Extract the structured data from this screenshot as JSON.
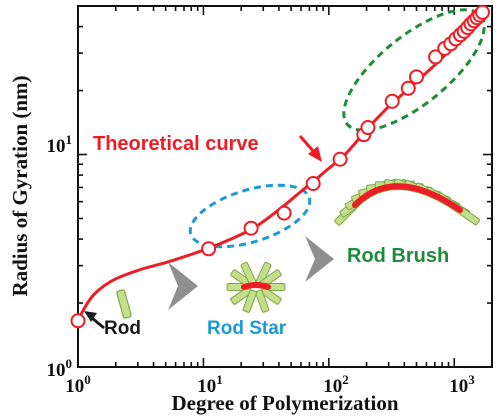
{
  "chart_data": {
    "type": "scatter",
    "xscale": "log",
    "yscale": "log",
    "xlim": [
      1,
      2000
    ],
    "ylim": [
      1,
      50
    ],
    "xlabel": "Degree of Polymerization",
    "ylabel": "Radius of Gyration (nm)",
    "x_ticks": [
      {
        "base": "10",
        "exp": "0",
        "value": 1
      },
      {
        "base": "10",
        "exp": "1",
        "value": 10
      },
      {
        "base": "10",
        "exp": "2",
        "value": 100
      },
      {
        "base": "10",
        "exp": "3",
        "value": 1000
      }
    ],
    "y_ticks": [
      {
        "base": "10",
        "exp": "0",
        "value": 1
      },
      {
        "base": "10",
        "exp": "1",
        "value": 10
      }
    ],
    "grid": false,
    "series": [
      {
        "name": "Theoretical curve",
        "kind": "line",
        "color": "#ee1c25",
        "x": [
          1,
          1.1,
          1.3,
          1.6,
          2,
          3,
          5,
          7,
          10,
          15,
          25,
          40,
          60,
          80,
          100,
          130,
          160,
          200,
          300,
          500,
          800,
          1200,
          1800
        ],
        "y": [
          1.65,
          1.85,
          2.15,
          2.4,
          2.6,
          2.85,
          3.1,
          3.3,
          3.55,
          3.9,
          4.5,
          5.5,
          6.7,
          7.7,
          8.6,
          9.8,
          11.2,
          13.1,
          16.8,
          22.0,
          28.5,
          36.5,
          47.0
        ]
      },
      {
        "name": "",
        "kind": "markers",
        "color": "#ee1c25",
        "x": [
          1,
          11,
          24,
          44,
          75,
          123,
          190,
          205,
          320,
          430,
          500,
          710,
          840,
          940,
          1030,
          1120,
          1200,
          1280,
          1360,
          1440,
          1520,
          1600,
          1680
        ],
        "y": [
          1.65,
          3.6,
          4.5,
          5.3,
          7.3,
          9.5,
          12.4,
          13.4,
          17.8,
          20.5,
          23.2,
          28.8,
          31.6,
          33.2,
          35.0,
          36.6,
          38.0,
          39.6,
          41.2,
          42.6,
          44.0,
          45.3,
          46.7
        ]
      }
    ],
    "annotations": [
      {
        "text": "Theoretical curve",
        "color": "#ee1c25"
      },
      {
        "text": "Rod",
        "color": "#1a1a1a"
      },
      {
        "text": "Rod Star",
        "color": "#1a9ad6"
      },
      {
        "text": "Rod Brush",
        "color": "#1e8a3c"
      }
    ],
    "colors": {
      "curve": "#ee1c25",
      "blue_ellipse": "#1a9ad6",
      "green_ellipse": "#1e8a3c",
      "rod_fill": "#c3df8c",
      "rod_stroke": "#7fa84a",
      "arrow_fill": "#8f8f8f"
    }
  }
}
